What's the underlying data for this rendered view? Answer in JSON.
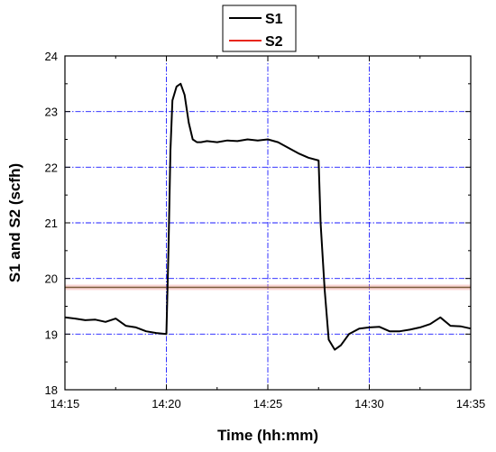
{
  "chart_data": {
    "type": "line",
    "title": "",
    "xlabel": "Time (hh:mm)",
    "ylabel": "S1 and S2 (scfh)",
    "xlim": [
      "14:15",
      "14:35"
    ],
    "ylim": [
      18,
      24
    ],
    "x_ticks": [
      "14:15",
      "14:20",
      "14:25",
      "14:30",
      "14:35"
    ],
    "y_ticks": [
      18,
      19,
      20,
      21,
      22,
      23,
      24
    ],
    "grid": "major, dash-dot",
    "legend_position": "top-center",
    "series": [
      {
        "name": "S1",
        "color": "#000000",
        "x": [
          "14:15:00",
          "14:15:30",
          "14:16:00",
          "14:16:30",
          "14:17:00",
          "14:17:30",
          "14:18:00",
          "14:18:30",
          "14:19:00",
          "14:19:30",
          "14:20:00",
          "14:20:06",
          "14:20:12",
          "14:20:18",
          "14:20:30",
          "14:20:42",
          "14:20:54",
          "14:21:06",
          "14:21:18",
          "14:21:30",
          "14:21:42",
          "14:22:00",
          "14:22:30",
          "14:23:00",
          "14:23:30",
          "14:24:00",
          "14:24:30",
          "14:25:00",
          "14:25:30",
          "14:26:00",
          "14:26:30",
          "14:27:00",
          "14:27:30",
          "14:27:36",
          "14:27:48",
          "14:28:00",
          "14:28:18",
          "14:28:36",
          "14:29:00",
          "14:29:30",
          "14:30:00",
          "14:30:30",
          "14:31:00",
          "14:31:30",
          "14:32:00",
          "14:32:30",
          "14:33:00",
          "14:33:30",
          "14:34:00",
          "14:34:30",
          "14:35:00"
        ],
        "y": [
          19.3,
          19.28,
          19.25,
          19.26,
          19.22,
          19.28,
          19.15,
          19.12,
          19.05,
          19.02,
          19.0,
          20.5,
          22.3,
          23.2,
          23.45,
          23.5,
          23.3,
          22.8,
          22.5,
          22.45,
          22.45,
          22.47,
          22.45,
          22.48,
          22.47,
          22.5,
          22.48,
          22.5,
          22.45,
          22.35,
          22.25,
          22.17,
          22.12,
          21.0,
          19.8,
          18.9,
          18.72,
          18.8,
          19.0,
          19.1,
          19.12,
          19.13,
          19.05,
          19.05,
          19.08,
          19.12,
          19.18,
          19.3,
          19.15,
          19.14,
          19.1
        ]
      },
      {
        "name": "S2",
        "color": "#e8261b",
        "x": [
          "14:15:00",
          "14:20:00",
          "14:25:00",
          "14:30:00",
          "14:35:00"
        ],
        "y": [
          19.84,
          19.84,
          19.84,
          19.84,
          19.84
        ]
      }
    ]
  }
}
